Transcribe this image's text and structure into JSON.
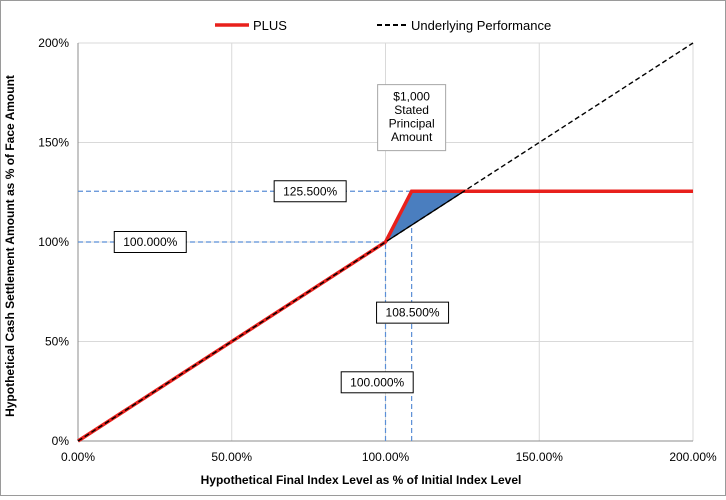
{
  "chart_data": {
    "type": "line",
    "title": "",
    "xlabel": "Hypothetical Final Index Level as % of Initial Index Level",
    "ylabel": "Hypothetical Cash Settlement Amount as % of Face Amount",
    "xlim": [
      0,
      200
    ],
    "ylim": [
      0,
      200
    ],
    "x_ticks": [
      "0.00%",
      "50.00%",
      "100.00%",
      "150.00%",
      "200.00%"
    ],
    "y_ticks": [
      "0%",
      "50%",
      "100%",
      "150%",
      "200%"
    ],
    "grid": true,
    "legend_position": "top",
    "series": [
      {
        "name": "PLUS",
        "color": "#e8201c",
        "style": "solid",
        "points": [
          [
            0,
            0
          ],
          [
            100,
            100
          ],
          [
            108.5,
            125.5
          ],
          [
            200,
            125.5
          ]
        ]
      },
      {
        "name": "Underlying Performance",
        "color": "#000000",
        "style": "dashed",
        "points": [
          [
            0,
            0
          ],
          [
            200,
            200
          ]
        ]
      }
    ],
    "shaded_region": {
      "color": "#4a7ebf",
      "points": [
        [
          100,
          100
        ],
        [
          108.5,
          125.5
        ],
        [
          125.5,
          125.5
        ]
      ]
    },
    "reference_lines": {
      "color": "#5b8fd6",
      "horizontal": [
        {
          "y": 125.5,
          "x_to": 108.5
        },
        {
          "y": 100,
          "x_to": 100
        }
      ],
      "vertical": [
        {
          "x": 100,
          "y_to": 100
        },
        {
          "x": 108.5,
          "y_to": 125.5
        }
      ]
    },
    "annotations": [
      {
        "text": "125.500%",
        "x": 75.5,
        "y": 125.5
      },
      {
        "text": "100.000%",
        "x": 23.5,
        "y": 100
      },
      {
        "text": "108.500%",
        "x": 108.8,
        "y": 64.5
      },
      {
        "text": "100.000%",
        "x": 97.3,
        "y": 29.5
      }
    ],
    "note": {
      "lines": [
        "$1,000",
        "Stated",
        "Principal",
        "Amount"
      ],
      "x": 108.5,
      "y": 162.5
    }
  }
}
